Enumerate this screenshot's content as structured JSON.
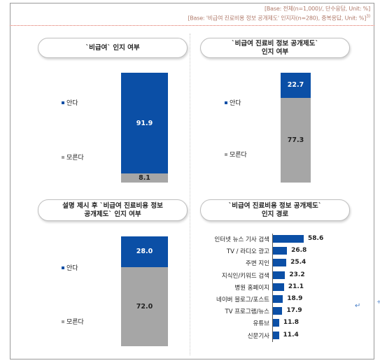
{
  "header": {
    "base_line1": "[Base: 전체(n=1,000)/, 단수응답, Unit: %]",
    "base_line2": "[Base: '비급여 진료비용 정보 공개제도' 인지자(n=280), 중복응답, Unit: %]",
    "footnote_mark": "3)"
  },
  "colors": {
    "primary": "#0b4fa6",
    "secondary": "#a6a6a6"
  },
  "panels": {
    "p1": {
      "title": "`비급여` 인지 여부",
      "legend_know": "안다",
      "legend_dont": "모른다"
    },
    "p2": {
      "title": "`비급여 진료비 정보 공개제도`\n인지 여부",
      "legend_know": "안다",
      "legend_dont": "모른다"
    },
    "p3": {
      "title": "설명 제시 후 `비급여 진료비용 정보\n공개제도` 인지 여부",
      "legend_know": "안다",
      "legend_dont": "모른다"
    },
    "p4": {
      "title": "`비급여 진료비용 정보 공개제도`\n인지 경로"
    }
  },
  "chart_data": [
    {
      "type": "bar",
      "stacked": true,
      "title": "`비급여` 인지 여부",
      "series": [
        {
          "name": "안다",
          "values": [
            91.9
          ]
        },
        {
          "name": "모른다",
          "values": [
            8.1
          ]
        }
      ],
      "ylim": [
        0,
        100
      ],
      "legend": "left"
    },
    {
      "type": "bar",
      "stacked": true,
      "title": "`비급여 진료비 정보 공개제도` 인지 여부",
      "series": [
        {
          "name": "안다",
          "values": [
            22.7
          ]
        },
        {
          "name": "모른다",
          "values": [
            77.3
          ]
        }
      ],
      "ylim": [
        0,
        100
      ],
      "legend": "left"
    },
    {
      "type": "bar",
      "stacked": true,
      "title": "설명 제시 후 `비급여 진료비용 정보 공개제도` 인지 여부",
      "series": [
        {
          "name": "안다",
          "values": [
            28.0
          ]
        },
        {
          "name": "모른다",
          "values": [
            72.0
          ]
        }
      ],
      "ylim": [
        0,
        100
      ],
      "legend": "left"
    },
    {
      "type": "bar",
      "orientation": "horizontal",
      "title": "`비급여 진료비용 정보 공개제도` 인지 경로",
      "categories": [
        "인터넷 뉴스 기사 검색",
        "TV / 라디오 광고",
        "주변 지인",
        "지식인/키워드 검색",
        "병원 홈페이지",
        "네이버 블로그/포스트",
        "TV 프로그램/뉴스",
        "유튜브",
        "신문기사"
      ],
      "values": [
        58.6,
        26.8,
        25.4,
        23.2,
        21.1,
        18.9,
        17.9,
        11.8,
        11.4
      ],
      "xlim": [
        0,
        60
      ]
    }
  ]
}
